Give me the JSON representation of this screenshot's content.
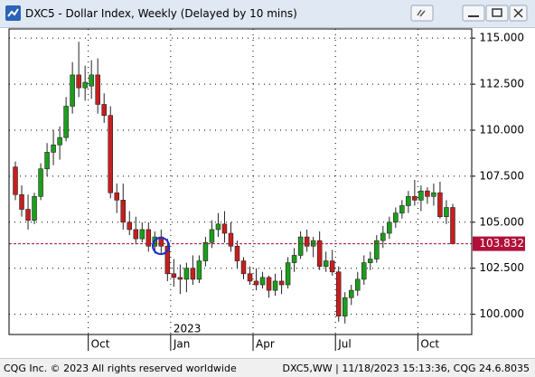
{
  "chart_data": {
    "type": "candlestick",
    "title": "DXC5 - Dollar Index, Weekly (Delayed by 10 mins)",
    "up_color": "#1c9e1c",
    "down_color": "#c81e1e",
    "open": [
      108.0,
      106.5,
      105.7,
      105.1,
      106.4,
      107.9,
      108.8,
      109.2,
      109.6,
      111.3,
      113.0,
      112.3,
      112.4,
      113.0,
      111.4,
      110.8,
      106.6,
      106.2,
      105.0,
      104.6,
      104.1,
      104.6,
      103.7,
      104.2,
      103.7,
      102.2,
      102.0,
      101.9,
      102.5,
      101.9,
      102.9,
      103.9,
      104.6,
      104.9,
      104.4,
      103.7,
      102.9,
      102.2,
      101.8,
      101.6,
      102.0,
      101.3,
      101.8,
      101.6,
      102.8,
      103.2,
      104.2,
      103.7,
      104.0,
      102.6,
      102.9,
      102.3,
      99.9,
      100.9,
      101.3,
      101.9,
      102.8,
      103.0,
      104.0,
      104.4,
      105.0,
      105.5,
      105.9,
      106.4,
      106.2,
      106.7,
      106.4,
      106.6,
      105.3,
      105.8
    ],
    "high": [
      108.3,
      107.0,
      106.5,
      106.6,
      108.2,
      109.3,
      110.0,
      110.2,
      111.8,
      113.7,
      114.8,
      113.5,
      113.8,
      113.9,
      112.0,
      111.3,
      107.1,
      107.1,
      105.6,
      105.3,
      105.0,
      105.0,
      104.5,
      104.6,
      104.1,
      103.0,
      102.7,
      102.8,
      103.2,
      103.2,
      104.2,
      105.1,
      105.5,
      105.6,
      105.0,
      104.0,
      103.1,
      102.6,
      102.5,
      102.3,
      102.1,
      102.2,
      102.4,
      103.1,
      103.6,
      104.5,
      104.6,
      104.2,
      104.5,
      103.4,
      103.5,
      102.6,
      101.2,
      101.6,
      102.3,
      103.2,
      103.4,
      104.3,
      104.8,
      105.3,
      105.8,
      106.2,
      106.7,
      107.3,
      107.0,
      106.9,
      107.1,
      107.2,
      106.2,
      106.0
    ],
    "low": [
      106.2,
      105.3,
      104.6,
      104.9,
      106.2,
      107.5,
      108.1,
      108.4,
      109.4,
      110.9,
      111.8,
      111.6,
      111.7,
      110.9,
      110.4,
      106.3,
      105.5,
      104.6,
      104.3,
      103.8,
      103.9,
      103.4,
      103.3,
      103.3,
      101.8,
      101.5,
      101.1,
      101.2,
      101.6,
      101.7,
      102.6,
      103.6,
      104.2,
      103.9,
      103.4,
      102.5,
      101.9,
      101.6,
      101.3,
      101.4,
      100.9,
      101.0,
      101.1,
      101.4,
      102.3,
      103.0,
      103.4,
      103.1,
      102.4,
      102.3,
      102.1,
      99.6,
      99.5,
      100.5,
      101.0,
      101.6,
      102.4,
      102.8,
      103.6,
      104.1,
      104.7,
      105.2,
      105.5,
      105.9,
      105.6,
      106.0,
      105.9,
      105.2,
      104.9,
      103.8
    ],
    "close": [
      106.5,
      105.7,
      105.1,
      106.4,
      107.9,
      108.8,
      109.2,
      109.6,
      111.3,
      113.0,
      112.3,
      112.6,
      113.0,
      111.4,
      110.8,
      106.6,
      106.2,
      105.0,
      104.6,
      104.1,
      104.6,
      103.7,
      104.2,
      103.7,
      102.2,
      102.0,
      101.9,
      102.5,
      101.9,
      102.9,
      103.9,
      104.6,
      104.9,
      104.4,
      103.7,
      102.9,
      102.2,
      101.8,
      101.6,
      102.0,
      101.3,
      101.8,
      101.6,
      102.8,
      103.2,
      104.2,
      103.7,
      104.0,
      102.6,
      102.9,
      102.3,
      99.9,
      100.9,
      101.3,
      101.9,
      102.8,
      103.0,
      104.0,
      104.4,
      105.0,
      105.5,
      105.9,
      106.4,
      106.2,
      106.7,
      106.4,
      106.6,
      105.3,
      105.8,
      103.832
    ],
    "ylim": [
      98.9,
      115.5
    ],
    "yticks": [
      {
        "value": 100,
        "label": "100.000"
      },
      {
        "value": 102.5,
        "label": "102.500"
      },
      {
        "value": 105,
        "label": "105.000"
      },
      {
        "value": 107.5,
        "label": "107.500"
      },
      {
        "value": 110,
        "label": "110.000"
      },
      {
        "value": 112.5,
        "label": "112.500"
      },
      {
        "value": 115,
        "label": "115.000"
      }
    ],
    "xlim": [
      -1,
      72
    ],
    "xticks": [
      {
        "value": 11.5,
        "label": "Oct"
      },
      {
        "value": 24.5,
        "label": "Jan"
      },
      {
        "value": 37.5,
        "label": "Apr"
      },
      {
        "value": 50.5,
        "label": "Jul"
      },
      {
        "value": 63.5,
        "label": "Oct"
      }
    ],
    "annotations": [
      {
        "text": "2023",
        "x": 24.5
      }
    ],
    "last_price": 103.832,
    "grid": true
  },
  "footer": {
    "left": "CQG Inc. © 2023 All rights reserved worldwide",
    "right": "DXC5,WW | 11/18/2023 15:13:36, CQG 24.6.8035"
  }
}
